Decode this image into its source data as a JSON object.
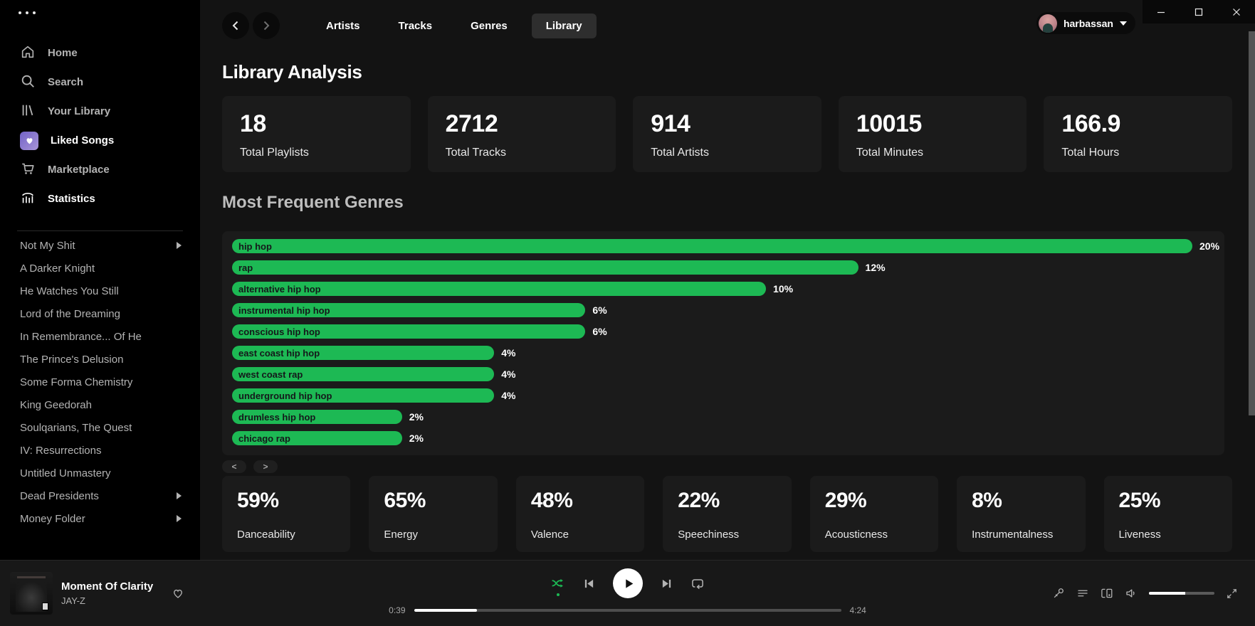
{
  "sidebar": {
    "nav_items": [
      {
        "label": "Home",
        "icon": "home-icon",
        "active": false
      },
      {
        "label": "Search",
        "icon": "search-icon",
        "active": false
      },
      {
        "label": "Your Library",
        "icon": "library-icon",
        "active": false
      },
      {
        "label": "Liked Songs",
        "icon": "liked-songs-heart-icon",
        "active": true
      },
      {
        "label": "Marketplace",
        "icon": "cart-icon",
        "active": false
      },
      {
        "label": "Statistics",
        "icon": "stats-chart-icon",
        "active": true
      }
    ],
    "playlists": [
      {
        "label": "Not My Shit",
        "expandable": true
      },
      {
        "label": "A Darker Knight",
        "expandable": false
      },
      {
        "label": "He Watches You Still",
        "expandable": false
      },
      {
        "label": "Lord of the Dreaming",
        "expandable": false
      },
      {
        "label": "In Remembrance... Of He",
        "expandable": false
      },
      {
        "label": "The Prince's Delusion",
        "expandable": false
      },
      {
        "label": "Some Forma Chemistry",
        "expandable": false
      },
      {
        "label": "King Geedorah",
        "expandable": false
      },
      {
        "label": "Soulqarians, The Quest",
        "expandable": false
      },
      {
        "label": "IV: Resurrections",
        "expandable": false
      },
      {
        "label": "Untitled Unmastery",
        "expandable": false
      },
      {
        "label": "Dead Presidents",
        "expandable": true
      },
      {
        "label": "Money Folder",
        "expandable": true
      }
    ]
  },
  "header": {
    "tabs": [
      {
        "label": "Artists",
        "active": false
      },
      {
        "label": "Tracks",
        "active": false
      },
      {
        "label": "Genres",
        "active": false
      },
      {
        "label": "Library",
        "active": true
      }
    ],
    "user_name": "harbassan"
  },
  "main": {
    "title": "Library Analysis",
    "stat_cards": [
      {
        "value": "18",
        "label": "Total Playlists"
      },
      {
        "value": "2712",
        "label": "Total Tracks"
      },
      {
        "value": "914",
        "label": "Total Artists"
      },
      {
        "value": "10015",
        "label": "Total Minutes"
      },
      {
        "value": "166.9",
        "label": "Total Hours"
      }
    ],
    "genres_title": "Most Frequent Genres",
    "pagination_prev": "<",
    "pagination_next": ">",
    "feature_cards": [
      {
        "value": "59%",
        "label": "Danceability"
      },
      {
        "value": "65%",
        "label": "Energy"
      },
      {
        "value": "48%",
        "label": "Valence"
      },
      {
        "value": "22%",
        "label": "Speechiness"
      },
      {
        "value": "29%",
        "label": "Acousticness"
      },
      {
        "value": "8%",
        "label": "Instrumentalness"
      },
      {
        "value": "25%",
        "label": "Liveness"
      }
    ]
  },
  "chart_data": {
    "type": "bar",
    "orientation": "horizontal",
    "title": "Most Frequent Genres",
    "categories": [
      "hip hop",
      "rap",
      "alternative hip hop",
      "instrumental hip hop",
      "conscious hip hop",
      "east coast hip hop",
      "west coast rap",
      "underground hip hop",
      "drumless hip hop",
      "chicago rap"
    ],
    "values": [
      20,
      12,
      10,
      6,
      6,
      4,
      4,
      4,
      2,
      2
    ],
    "value_labels": [
      "20%",
      "12%",
      "10%",
      "6%",
      "6%",
      "4%",
      "4%",
      "4%",
      "2%",
      "2%"
    ],
    "bar_width_pct": [
      100,
      65.2,
      55.6,
      36.8,
      36.8,
      27.3,
      27.3,
      27.3,
      17.7,
      17.7
    ],
    "bar_color": "#1db954",
    "xlim": [
      0,
      20
    ],
    "grid": false,
    "legend": false
  },
  "player": {
    "track_title": "Moment Of Clarity",
    "track_artist": "JAY-Z",
    "elapsed": "0:39",
    "duration": "4:24",
    "progress_percent": 14.8,
    "volume_percent": 55,
    "shuffle_active": true
  },
  "colors": {
    "accent_green": "#1db954",
    "sidebar_bg": "#000000",
    "main_bg": "#131313",
    "card_bg": "#1b1b1b",
    "player_bg": "#181818"
  }
}
